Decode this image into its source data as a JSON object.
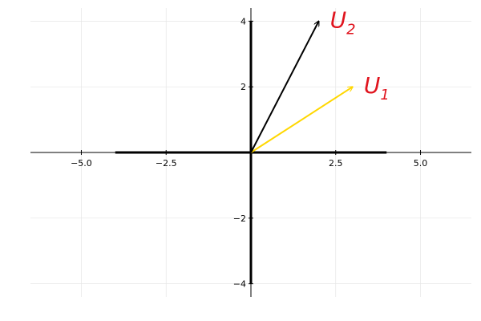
{
  "chart_data": {
    "type": "line",
    "title": "",
    "xlabel": "",
    "ylabel": "",
    "xlim": [
      -6.5,
      6.5
    ],
    "ylim": [
      -4.4,
      4.4
    ],
    "grid": true,
    "x_ticks": [
      {
        "value": -5,
        "label": "−5.0"
      },
      {
        "value": -2.5,
        "label": "−2.5"
      },
      {
        "value": 2.5,
        "label": "2.5"
      },
      {
        "value": 5,
        "label": "5.0"
      }
    ],
    "y_ticks": [
      {
        "value": -4,
        "label": "−4"
      },
      {
        "value": -2,
        "label": "−2"
      },
      {
        "value": 2,
        "label": "2"
      },
      {
        "value": 4,
        "label": "4"
      }
    ],
    "thick_segments": [
      {
        "from": [
          -4,
          0
        ],
        "to": [
          4,
          0
        ]
      },
      {
        "from": [
          0,
          -4
        ],
        "to": [
          0,
          4
        ]
      }
    ],
    "vectors": [
      {
        "label": "U",
        "subscript": "1",
        "from": [
          0,
          0
        ],
        "to": [
          3,
          2
        ],
        "color": "#ffd700"
      },
      {
        "label": "U",
        "subscript": "2",
        "from": [
          0,
          0
        ],
        "to": [
          2,
          4
        ],
        "color": "#000000"
      }
    ],
    "annotation_color": "#e0141e"
  }
}
